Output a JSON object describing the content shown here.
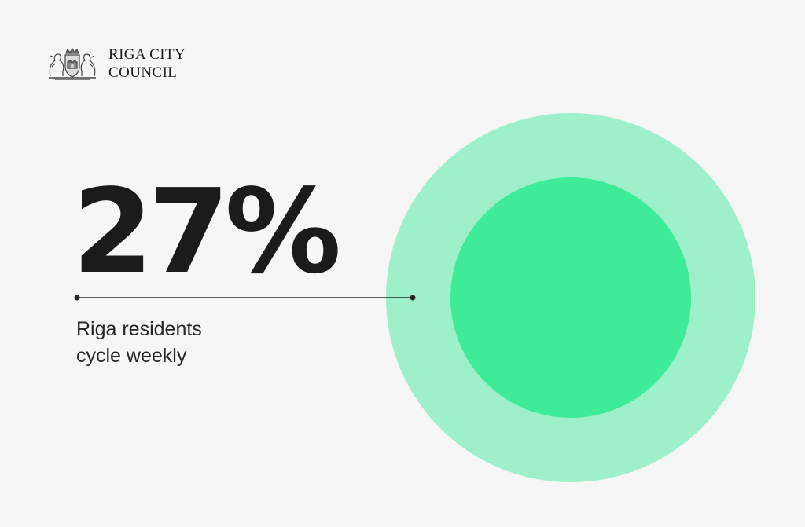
{
  "logo": {
    "line1": "RIGA CITY",
    "line2": "COUNCIL"
  },
  "stat": {
    "value": "27%"
  },
  "caption": {
    "line1": "Riga residents",
    "line2": "cycle weekly"
  },
  "colors": {
    "background": "#f6f6f6",
    "outer_circle": "#9df0c9",
    "inner_circle": "#3deb99",
    "text": "#1b1b1b"
  }
}
